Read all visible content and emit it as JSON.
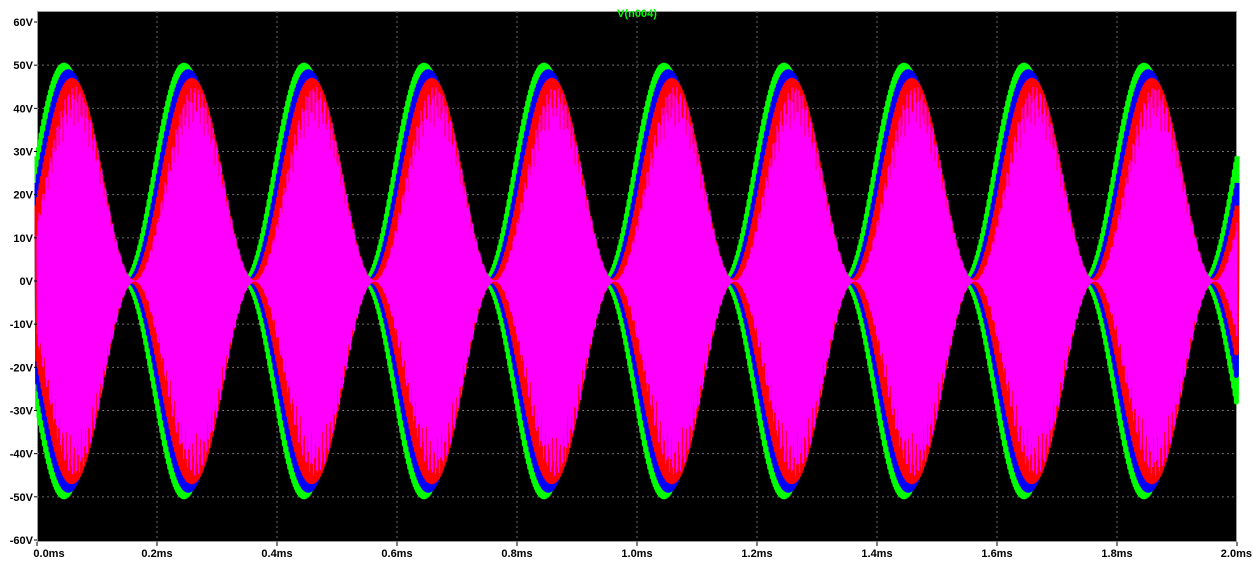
{
  "chart_data": {
    "type": "line",
    "title": "V(n004)",
    "x_ticks": [
      "0.0ms",
      "0.2ms",
      "0.4ms",
      "0.6ms",
      "0.8ms",
      "1.0ms",
      "1.2ms",
      "1.4ms",
      "1.6ms",
      "1.8ms",
      "2.0ms"
    ],
    "y_ticks": [
      "60V",
      "50V",
      "40V",
      "30V",
      "20V",
      "10V",
      "0V",
      "-10V",
      "-20V",
      "-30V",
      "-40V",
      "-50V",
      "-60V"
    ],
    "xlim": [
      0,
      2.0
    ],
    "ylim": [
      -60,
      60
    ],
    "x_unit": "ms",
    "y_unit": "V",
    "grid": true,
    "background": "#000000",
    "envelope_period_ms": 0.2,
    "series": [
      {
        "color": "#00ff00",
        "peak": 50,
        "phase_ms": 0.0
      },
      {
        "color": "#0000ff",
        "peak": 48.5,
        "phase_ms": 0.007
      },
      {
        "color": "#ff0000",
        "peak": 46.5,
        "phase_ms": 0.013
      },
      {
        "color": "#ff00ff",
        "peak": 45,
        "phase_ms": 0.018
      }
    ]
  }
}
